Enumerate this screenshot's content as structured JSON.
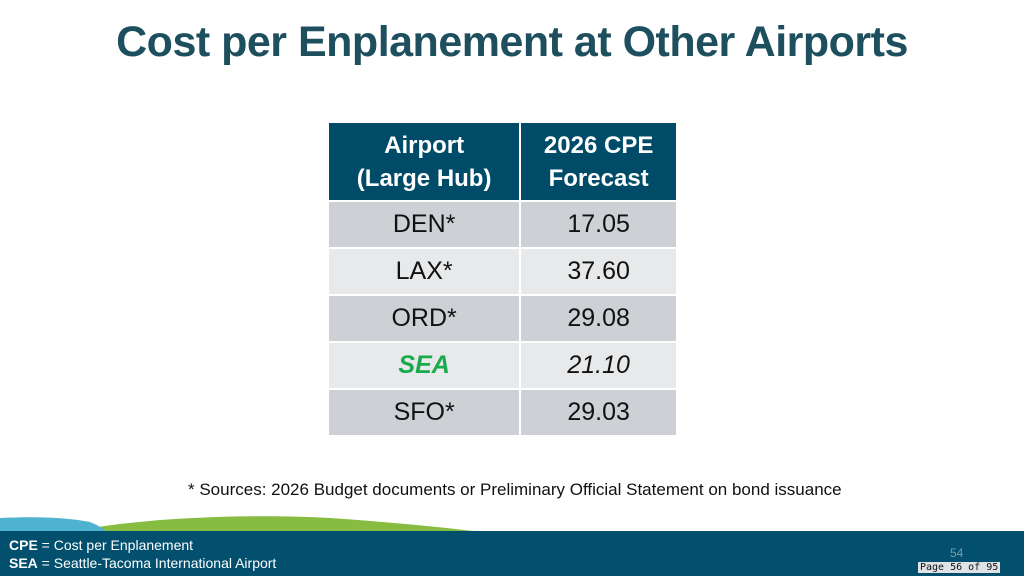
{
  "title": "Cost per Enplanement at Other Airports",
  "table": {
    "headers": [
      [
        "Airport",
        "(Large Hub)"
      ],
      [
        "2026 CPE",
        "Forecast"
      ]
    ],
    "rows": [
      {
        "airport": "DEN*",
        "cpe": "17.05"
      },
      {
        "airport": "LAX*",
        "cpe": "37.60"
      },
      {
        "airport": "ORD*",
        "cpe": "29.08"
      },
      {
        "airport": "SEA",
        "cpe": "21.10"
      },
      {
        "airport": "SFO*",
        "cpe": "29.03"
      }
    ]
  },
  "footnote": "* Sources: 2026 Budget documents or Preliminary Official Statement on bond issuance",
  "legend": [
    {
      "abbr": "CPE",
      "text": " = Cost per Enplanement"
    },
    {
      "abbr": "SEA",
      "text": " = Seattle-Tacoma International Airport"
    }
  ],
  "slide_number": "54",
  "page_indicator": "Page 56 of 95",
  "colors": {
    "header": "#004b68",
    "title": "#1d4f5e",
    "highlight": "#1aaa4b",
    "footer": "#02506e"
  }
}
